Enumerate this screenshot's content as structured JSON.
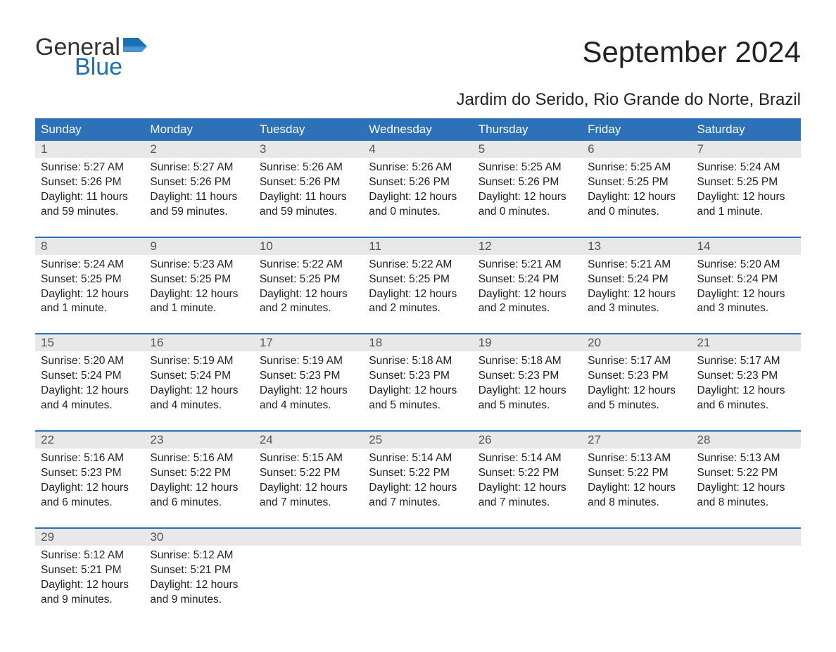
{
  "logo": {
    "word1": "General",
    "word2": "Blue",
    "text_color": "#333333",
    "accent_color": "#1b6fb3"
  },
  "title": "September 2024",
  "subtitle": "Jardim do Serido, Rio Grande do Norte, Brazil",
  "colors": {
    "header_bg": "#2d72b8",
    "header_text": "#ffffff",
    "daynum_bg": "#e8e8e8",
    "daynum_text": "#555555",
    "body_text": "#222222",
    "week_border": "#2d72b8",
    "page_bg": "#ffffff"
  },
  "fonts": {
    "title_size": 42,
    "subtitle_size": 24,
    "header_size": 17,
    "body_size": 15.5
  },
  "day_headers": [
    "Sunday",
    "Monday",
    "Tuesday",
    "Wednesday",
    "Thursday",
    "Friday",
    "Saturday"
  ],
  "weeks": [
    [
      {
        "n": "1",
        "sr": "Sunrise: 5:27 AM",
        "ss": "Sunset: 5:26 PM",
        "dl": "Daylight: 11 hours and 59 minutes."
      },
      {
        "n": "2",
        "sr": "Sunrise: 5:27 AM",
        "ss": "Sunset: 5:26 PM",
        "dl": "Daylight: 11 hours and 59 minutes."
      },
      {
        "n": "3",
        "sr": "Sunrise: 5:26 AM",
        "ss": "Sunset: 5:26 PM",
        "dl": "Daylight: 11 hours and 59 minutes."
      },
      {
        "n": "4",
        "sr": "Sunrise: 5:26 AM",
        "ss": "Sunset: 5:26 PM",
        "dl": "Daylight: 12 hours and 0 minutes."
      },
      {
        "n": "5",
        "sr": "Sunrise: 5:25 AM",
        "ss": "Sunset: 5:26 PM",
        "dl": "Daylight: 12 hours and 0 minutes."
      },
      {
        "n": "6",
        "sr": "Sunrise: 5:25 AM",
        "ss": "Sunset: 5:25 PM",
        "dl": "Daylight: 12 hours and 0 minutes."
      },
      {
        "n": "7",
        "sr": "Sunrise: 5:24 AM",
        "ss": "Sunset: 5:25 PM",
        "dl": "Daylight: 12 hours and 1 minute."
      }
    ],
    [
      {
        "n": "8",
        "sr": "Sunrise: 5:24 AM",
        "ss": "Sunset: 5:25 PM",
        "dl": "Daylight: 12 hours and 1 minute."
      },
      {
        "n": "9",
        "sr": "Sunrise: 5:23 AM",
        "ss": "Sunset: 5:25 PM",
        "dl": "Daylight: 12 hours and 1 minute."
      },
      {
        "n": "10",
        "sr": "Sunrise: 5:22 AM",
        "ss": "Sunset: 5:25 PM",
        "dl": "Daylight: 12 hours and 2 minutes."
      },
      {
        "n": "11",
        "sr": "Sunrise: 5:22 AM",
        "ss": "Sunset: 5:25 PM",
        "dl": "Daylight: 12 hours and 2 minutes."
      },
      {
        "n": "12",
        "sr": "Sunrise: 5:21 AM",
        "ss": "Sunset: 5:24 PM",
        "dl": "Daylight: 12 hours and 2 minutes."
      },
      {
        "n": "13",
        "sr": "Sunrise: 5:21 AM",
        "ss": "Sunset: 5:24 PM",
        "dl": "Daylight: 12 hours and 3 minutes."
      },
      {
        "n": "14",
        "sr": "Sunrise: 5:20 AM",
        "ss": "Sunset: 5:24 PM",
        "dl": "Daylight: 12 hours and 3 minutes."
      }
    ],
    [
      {
        "n": "15",
        "sr": "Sunrise: 5:20 AM",
        "ss": "Sunset: 5:24 PM",
        "dl": "Daylight: 12 hours and 4 minutes."
      },
      {
        "n": "16",
        "sr": "Sunrise: 5:19 AM",
        "ss": "Sunset: 5:24 PM",
        "dl": "Daylight: 12 hours and 4 minutes."
      },
      {
        "n": "17",
        "sr": "Sunrise: 5:19 AM",
        "ss": "Sunset: 5:23 PM",
        "dl": "Daylight: 12 hours and 4 minutes."
      },
      {
        "n": "18",
        "sr": "Sunrise: 5:18 AM",
        "ss": "Sunset: 5:23 PM",
        "dl": "Daylight: 12 hours and 5 minutes."
      },
      {
        "n": "19",
        "sr": "Sunrise: 5:18 AM",
        "ss": "Sunset: 5:23 PM",
        "dl": "Daylight: 12 hours and 5 minutes."
      },
      {
        "n": "20",
        "sr": "Sunrise: 5:17 AM",
        "ss": "Sunset: 5:23 PM",
        "dl": "Daylight: 12 hours and 5 minutes."
      },
      {
        "n": "21",
        "sr": "Sunrise: 5:17 AM",
        "ss": "Sunset: 5:23 PM",
        "dl": "Daylight: 12 hours and 6 minutes."
      }
    ],
    [
      {
        "n": "22",
        "sr": "Sunrise: 5:16 AM",
        "ss": "Sunset: 5:23 PM",
        "dl": "Daylight: 12 hours and 6 minutes."
      },
      {
        "n": "23",
        "sr": "Sunrise: 5:16 AM",
        "ss": "Sunset: 5:22 PM",
        "dl": "Daylight: 12 hours and 6 minutes."
      },
      {
        "n": "24",
        "sr": "Sunrise: 5:15 AM",
        "ss": "Sunset: 5:22 PM",
        "dl": "Daylight: 12 hours and 7 minutes."
      },
      {
        "n": "25",
        "sr": "Sunrise: 5:14 AM",
        "ss": "Sunset: 5:22 PM",
        "dl": "Daylight: 12 hours and 7 minutes."
      },
      {
        "n": "26",
        "sr": "Sunrise: 5:14 AM",
        "ss": "Sunset: 5:22 PM",
        "dl": "Daylight: 12 hours and 7 minutes."
      },
      {
        "n": "27",
        "sr": "Sunrise: 5:13 AM",
        "ss": "Sunset: 5:22 PM",
        "dl": "Daylight: 12 hours and 8 minutes."
      },
      {
        "n": "28",
        "sr": "Sunrise: 5:13 AM",
        "ss": "Sunset: 5:22 PM",
        "dl": "Daylight: 12 hours and 8 minutes."
      }
    ],
    [
      {
        "n": "29",
        "sr": "Sunrise: 5:12 AM",
        "ss": "Sunset: 5:21 PM",
        "dl": "Daylight: 12 hours and 9 minutes."
      },
      {
        "n": "30",
        "sr": "Sunrise: 5:12 AM",
        "ss": "Sunset: 5:21 PM",
        "dl": "Daylight: 12 hours and 9 minutes."
      },
      {
        "n": "",
        "sr": "",
        "ss": "",
        "dl": ""
      },
      {
        "n": "",
        "sr": "",
        "ss": "",
        "dl": ""
      },
      {
        "n": "",
        "sr": "",
        "ss": "",
        "dl": ""
      },
      {
        "n": "",
        "sr": "",
        "ss": "",
        "dl": ""
      },
      {
        "n": "",
        "sr": "",
        "ss": "",
        "dl": ""
      }
    ]
  ]
}
